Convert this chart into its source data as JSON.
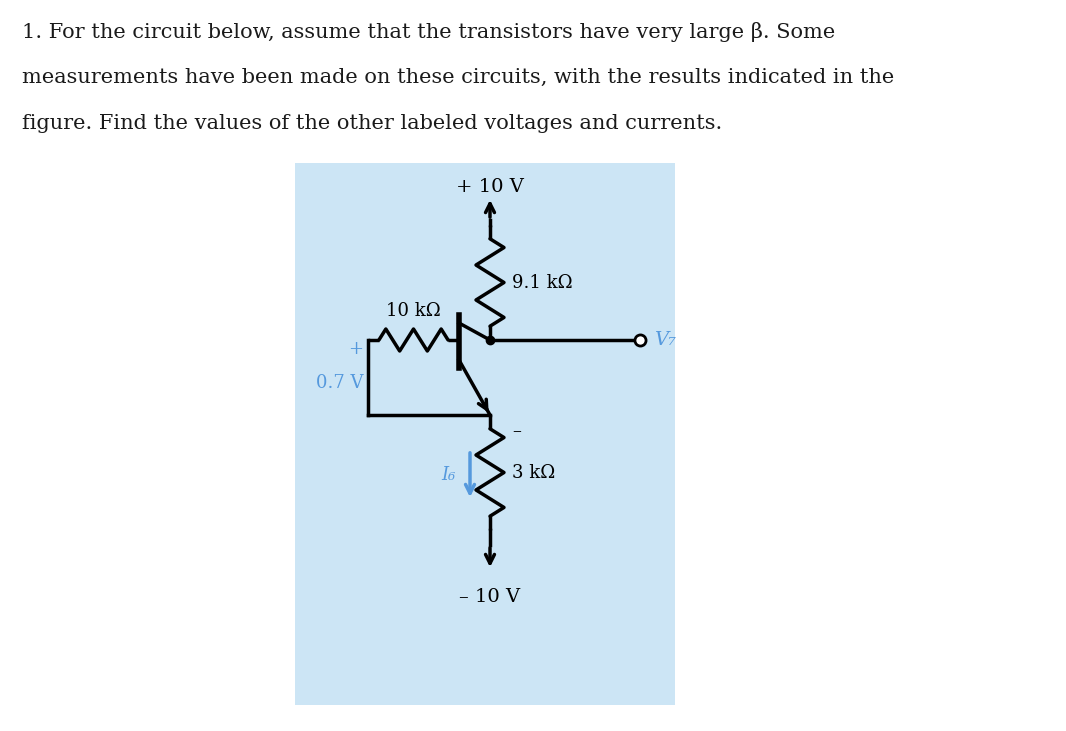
{
  "bg_color": "#ffffff",
  "circuit_bg": "#cce5f5",
  "text_color": "#1a1a1a",
  "blue_color": "#5599dd",
  "black": "#000000",
  "title_line1": "1. For the circuit below, assume that the transistors have very large β. Some",
  "title_line2": "measurements have been made on these circuits, with the results indicated in the",
  "title_line3": "figure. Find the values of the other labeled voltages and currents.",
  "vcc_label": "+ 10 V",
  "vee_label": "– 10 V",
  "r1_label": "9.1 kΩ",
  "r2_label": "10 kΩ",
  "r3_label": "3 kΩ",
  "v7_label": "V₇",
  "vbe_plus": "+",
  "vbe_val": "0.7 V",
  "vbe_minus": "–",
  "i6_label": "I₆",
  "figsize": [
    10.66,
    7.31
  ],
  "dpi": 100
}
